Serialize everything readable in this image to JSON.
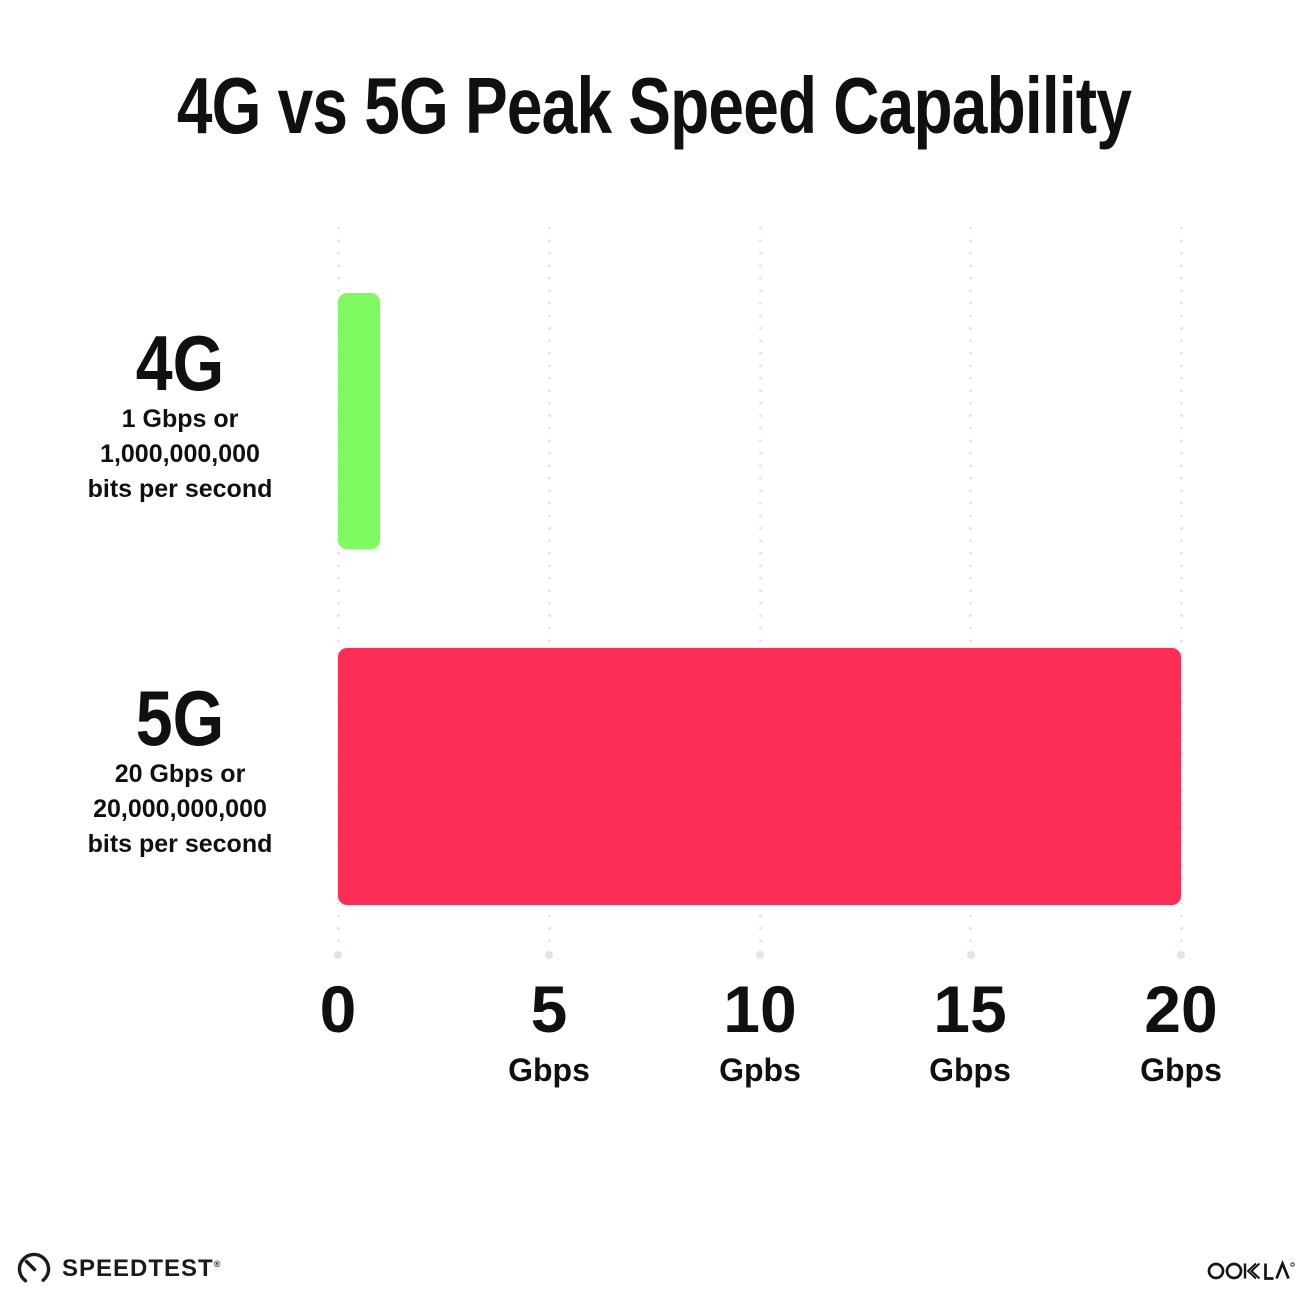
{
  "title": "4G vs 5G Peak Speed Capability",
  "chart_data": {
    "type": "bar",
    "orientation": "horizontal",
    "title": "4G vs 5G Peak Speed Capability",
    "xlabel": "Gbps",
    "ylabel": "",
    "xlim": [
      0,
      20
    ],
    "grid": "dotted-vertical",
    "categories": [
      "4G",
      "5G"
    ],
    "values": [
      1,
      20
    ],
    "rows": [
      {
        "label": "4G",
        "sub_lines": [
          "1 Gbps or",
          "1,000,000,000",
          "bits per second"
        ],
        "value_gbps": 1,
        "color": "#7ef95f"
      },
      {
        "label": "5G",
        "sub_lines": [
          "20 Gbps or",
          "20,000,000,000",
          "bits per second"
        ],
        "value_gbps": 20,
        "color": "#fd2e55"
      }
    ],
    "x_ticks": [
      {
        "value": "0",
        "unit": ""
      },
      {
        "value": "5",
        "unit": "Gbps"
      },
      {
        "value": "10",
        "unit": "Gpbs"
      },
      {
        "value": "15",
        "unit": "Gbps"
      },
      {
        "value": "20",
        "unit": "Gbps"
      }
    ]
  },
  "footer": {
    "speedtest_label": "SPEEDTEST",
    "speedtest_tm": "®",
    "ookla_label": "OOKLA",
    "ookla_tm": "®"
  },
  "colors": {
    "bar_4g": "#7ef95f",
    "bar_5g": "#fd2e55",
    "grid_dot": "#e0e3ee",
    "text": "#101010",
    "background": "#ffffff"
  }
}
